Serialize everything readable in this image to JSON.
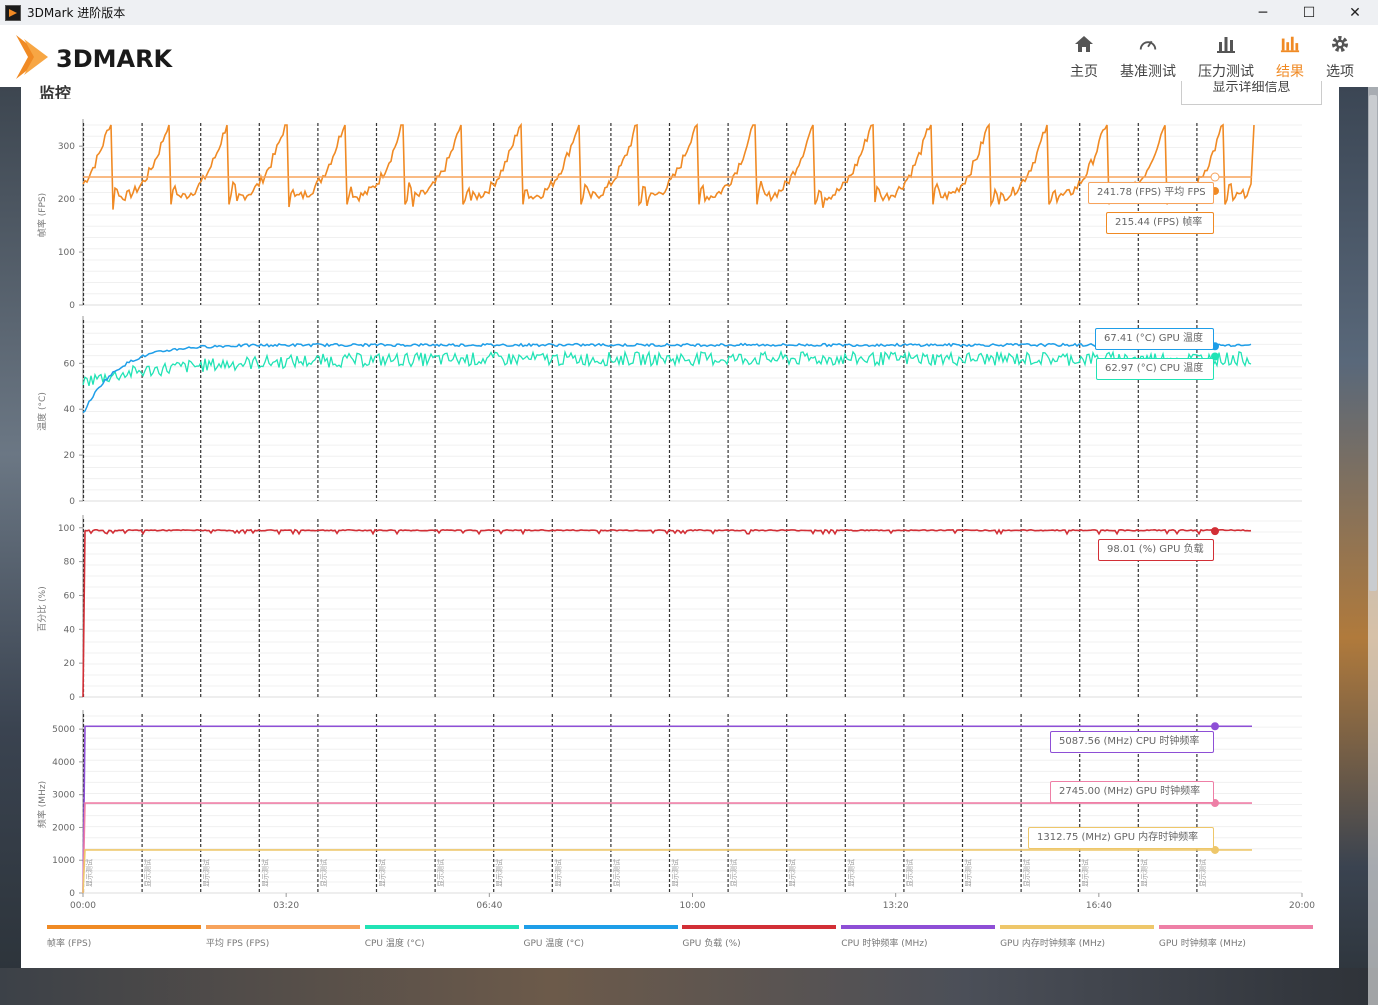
{
  "window": {
    "title": "3DMark 进阶版本",
    "minimize": "─",
    "maximize": "☐",
    "close": "✕"
  },
  "header": {
    "logo_text": "3DMARK",
    "nav": [
      {
        "label": "主页",
        "icon": "home-icon"
      },
      {
        "label": "基准测试",
        "icon": "gauge-icon"
      },
      {
        "label": "压力测试",
        "icon": "stress-chart-icon"
      },
      {
        "label": "结果",
        "icon": "results-chart-icon",
        "active": true
      },
      {
        "label": "选项",
        "icon": "gear-icon"
      }
    ]
  },
  "panel": {
    "title": "监控",
    "details_button": "显示详细信息"
  },
  "colors": {
    "fps": "#f08a24",
    "avg_fps": "#f7a35c",
    "cpu_temp": "#21e3b5",
    "gpu_temp": "#1e9ee8",
    "gpu_load": "#d22f36",
    "cpu_clock": "#8e4fd6",
    "gpu_mem_clock": "#eec76a",
    "gpu_clock": "#ee7fa6"
  },
  "chart_data": {
    "type": "line",
    "x_ticks": [
      "00:00",
      "03:20",
      "06:40",
      "10:00",
      "13:20",
      "16:40",
      "20:00"
    ],
    "x_range_seconds": [
      0,
      1200
    ],
    "marker_label": "显示测试",
    "marker_count": 20,
    "panels": [
      {
        "ylabel": "帧率 (FPS)",
        "yticks": [
          "0",
          "100",
          "200",
          "300"
        ],
        "ylim": [
          0,
          340
        ],
        "series": [
          {
            "name": "帧率 (FPS)",
            "pattern": "sawtooth",
            "low": 205,
            "high": 365,
            "final": 215.44
          },
          {
            "name": "平均 FPS (FPS)",
            "pattern": "flat",
            "value": 241.78
          }
        ],
        "callouts": [
          "241.78 (FPS) 平均 FPS",
          "215.44 (FPS) 帧率"
        ]
      },
      {
        "ylabel": "温度 (°C)",
        "yticks": [
          "0",
          "20",
          "40",
          "60"
        ],
        "ylim": [
          0,
          78
        ],
        "series": [
          {
            "name": "GPU 温度 (°C)",
            "start": 38,
            "plateau": 68,
            "final": 67.41
          },
          {
            "name": "CPU 温度 (°C)",
            "start": 52,
            "plateau": 62,
            "final": 62.97
          }
        ],
        "callouts": [
          "67.41 (°C) GPU 温度",
          "62.97 (°C) CPU 温度"
        ]
      },
      {
        "ylabel": "百分比 (%)",
        "yticks": [
          "0",
          "20",
          "40",
          "60",
          "80",
          "100"
        ],
        "ylim": [
          0,
          104
        ],
        "series": [
          {
            "name": "GPU 负载 (%)",
            "value": 98.5,
            "final": 98.01
          }
        ],
        "callouts": [
          "98.01 (%) GPU 负载"
        ]
      },
      {
        "ylabel": "频率 (MHz)",
        "yticks": [
          "0",
          "1000",
          "2000",
          "3000",
          "4000",
          "5000"
        ],
        "ylim": [
          0,
          5400
        ],
        "series": [
          {
            "name": "CPU 时钟频率 (MHz)",
            "value": 5087.56
          },
          {
            "name": "GPU 时钟频率 (MHz)",
            "value": 2745.0
          },
          {
            "name": "GPU 内存时钟频率 (MHz)",
            "value": 1312.75
          }
        ],
        "callouts": [
          "5087.56 (MHz) CPU 时钟频率",
          "2745.00 (MHz) GPU 时钟频率",
          "1312.75 (MHz) GPU 内存时钟频率"
        ]
      }
    ],
    "legend": [
      "帧率 (FPS)",
      "平均 FPS (FPS)",
      "CPU 温度 (°C)",
      "GPU 温度 (°C)",
      "GPU 负载 (%)",
      "CPU 时钟频率 (MHz)",
      "GPU 内存时钟频率 (MHz)",
      "GPU 时钟频率 (MHz)"
    ]
  }
}
